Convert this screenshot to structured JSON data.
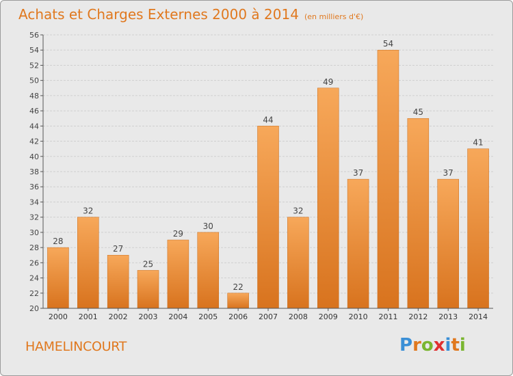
{
  "title": "Achats et Charges Externes 2000 à 2014",
  "unit": "(en milliers d'€)",
  "commune": "HAMELINCOURT",
  "logo": {
    "text": "Proxiti",
    "colors": [
      "#3a8fd6",
      "#e0781e",
      "#7ab530",
      "#e03030",
      "#3a8fd6",
      "#e0781e",
      "#7ab530"
    ]
  },
  "colors": {
    "bar_top": "#f7a85a",
    "bar_bottom": "#d8731e",
    "accent": "#e0781e"
  },
  "chart_data": {
    "type": "bar",
    "categories": [
      "2000",
      "2001",
      "2002",
      "2003",
      "2004",
      "2005",
      "2006",
      "2007",
      "2008",
      "2009",
      "2010",
      "2011",
      "2012",
      "2013",
      "2014"
    ],
    "values": [
      28,
      32,
      27,
      25,
      29,
      30,
      22,
      44,
      32,
      49,
      37,
      54,
      45,
      37,
      41
    ],
    "ylim": [
      20,
      56
    ],
    "ytick_step": 2,
    "grid": true
  }
}
